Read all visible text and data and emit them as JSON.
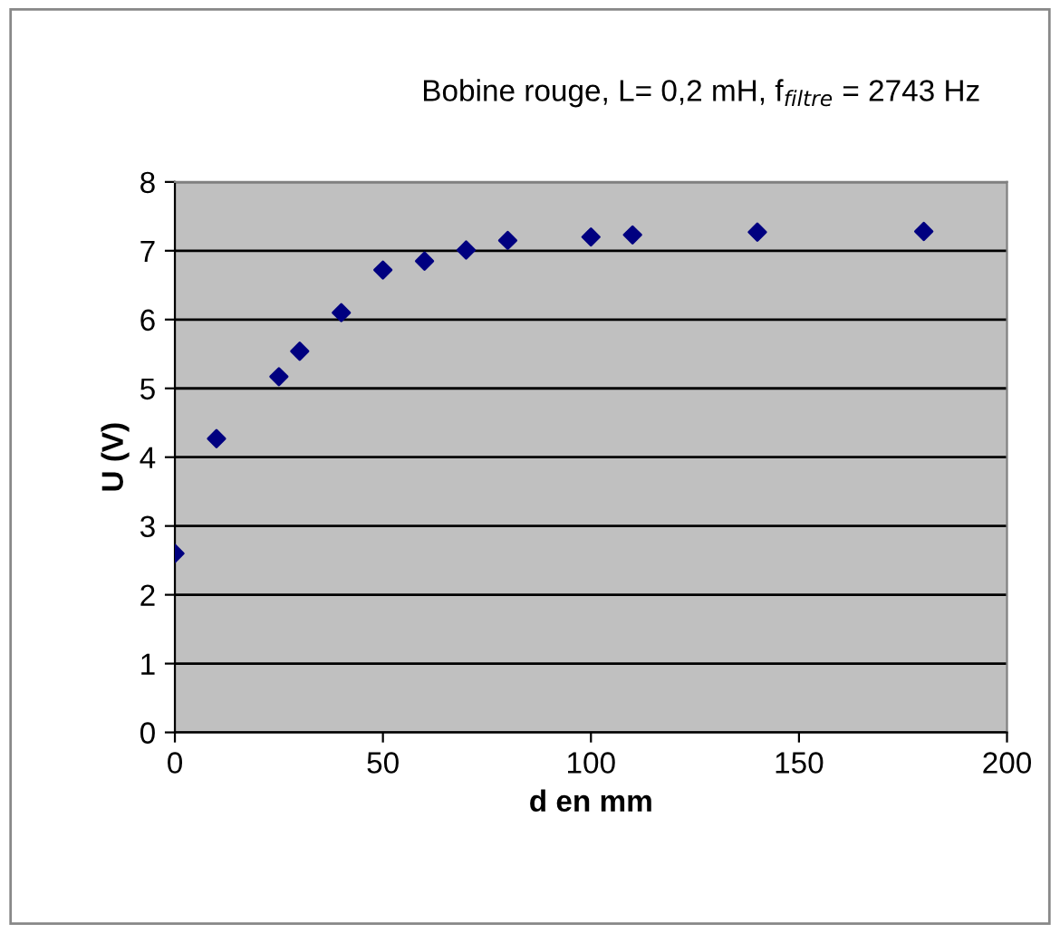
{
  "chart_data": {
    "type": "scatter",
    "title": "Bobine rouge, L= 0,2 mH, f$_{filtre}$ = 2743 Hz",
    "xlabel": "d en mm",
    "ylabel": "U (V)",
    "x": [
      0,
      10,
      25,
      30,
      40,
      50,
      60,
      70,
      80,
      100,
      110,
      140,
      180
    ],
    "series": [
      {
        "color": "#000080",
        "values": [
          2.6,
          4.27,
          5.17,
          5.54,
          6.1,
          6.72,
          6.85,
          7.01,
          7.15,
          7.2,
          7.23,
          7.27,
          7.28
        ]
      }
    ],
    "xlim": [
      0,
      200
    ],
    "xticks": [
      0,
      50,
      100,
      150,
      200
    ],
    "ylim": [
      0,
      8
    ],
    "yticks": [
      0,
      1,
      2,
      3,
      4,
      5,
      6,
      7,
      8
    ],
    "grid": "y",
    "marker": "diamond",
    "legend": false
  }
}
